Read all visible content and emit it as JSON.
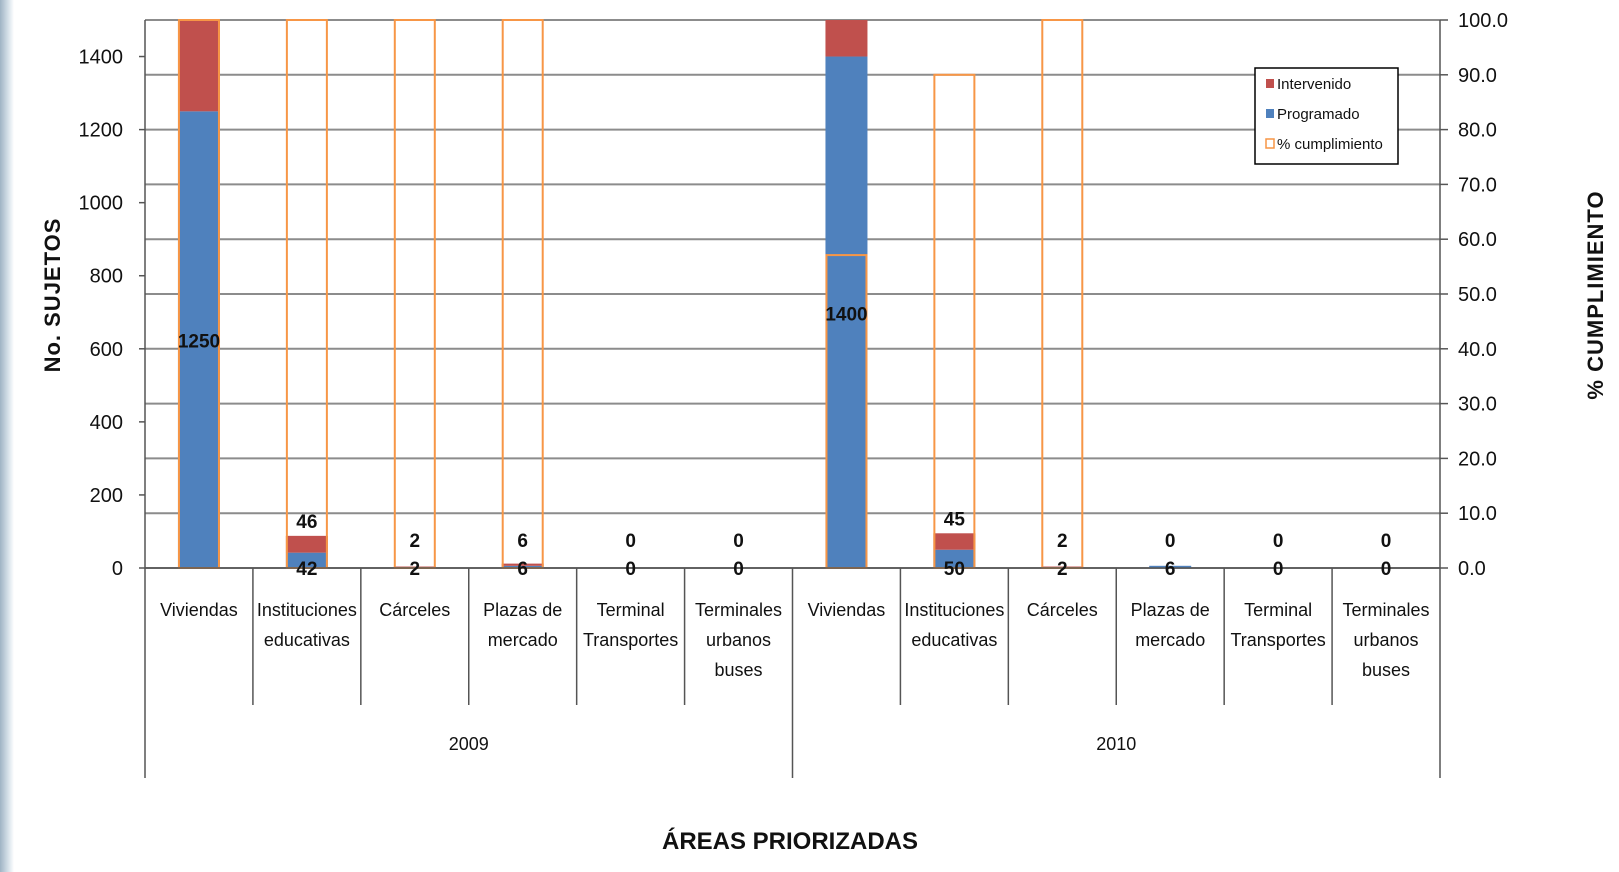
{
  "chart_data": {
    "type": "bar",
    "groups": [
      "2009",
      "2010"
    ],
    "categories": [
      "Viviendas",
      "Instituciones educativas",
      "Cárceles",
      "Plazas de mercado",
      "Terminal Transportes",
      "Terminales urbanos buses",
      "Viviendas",
      "Instituciones educativas",
      "Cárceles",
      "Plazas de mercado",
      "Terminal Transportes",
      "Terminales urbanos buses"
    ],
    "category_lines": [
      [
        "Viviendas"
      ],
      [
        "Instituciones",
        "educativas"
      ],
      [
        "Cárceles"
      ],
      [
        "Plazas de",
        "mercado"
      ],
      [
        "Terminal",
        "Transportes"
      ],
      [
        "Terminales",
        "urbanos",
        "buses"
      ],
      [
        "Viviendas"
      ],
      [
        "Instituciones",
        "educativas"
      ],
      [
        "Cárceles"
      ],
      [
        "Plazas de",
        "mercado"
      ],
      [
        "Terminal",
        "Transportes"
      ],
      [
        "Terminales",
        "urbanos",
        "buses"
      ]
    ],
    "series": [
      {
        "name": "Programado",
        "axis": "left",
        "color": "#4f81bd",
        "values": [
          1250,
          42,
          2,
          6,
          0,
          0,
          1400,
          50,
          2,
          6,
          0,
          0
        ],
        "labels": [
          "1250",
          "42",
          "2",
          "6",
          "0",
          "0",
          "1400",
          "50",
          "2",
          "6",
          "0",
          "0"
        ]
      },
      {
        "name": "Intervenido",
        "axis": "left",
        "color": "#c0504d",
        "values": [
          1250,
          46,
          2,
          6,
          0,
          0,
          800,
          45,
          2,
          0,
          0,
          0
        ],
        "labels": [
          "",
          "46",
          "2",
          "6",
          "0",
          "0",
          "",
          "45",
          "2",
          "0",
          "0",
          "0"
        ]
      },
      {
        "name": "% cumplimiento",
        "axis": "right",
        "color": "#f79646",
        "values": [
          100.0,
          100.0,
          100.0,
          100.0,
          0,
          0,
          57.1,
          90.0,
          100.0,
          0,
          0,
          0
        ]
      }
    ],
    "xlabel": "ÁREAS PRIORIZADAS",
    "ylabel": "No. SUJETOS",
    "y2label": "% CUMPLIMIENTO",
    "ylim": [
      0,
      1500
    ],
    "y2lim": [
      0,
      100
    ],
    "yticks": [
      "0",
      "200",
      "400",
      "600",
      "800",
      "1000",
      "1200",
      "1400"
    ],
    "y2ticks": [
      "0.0",
      "10.0",
      "20.0",
      "30.0",
      "40.0",
      "50.0",
      "60.0",
      "70.0",
      "80.0",
      "90.0",
      "100.0"
    ],
    "legend": [
      "Intervenido",
      "Programado",
      "% cumplimiento"
    ],
    "legend_position": "top-right",
    "grid": true
  }
}
